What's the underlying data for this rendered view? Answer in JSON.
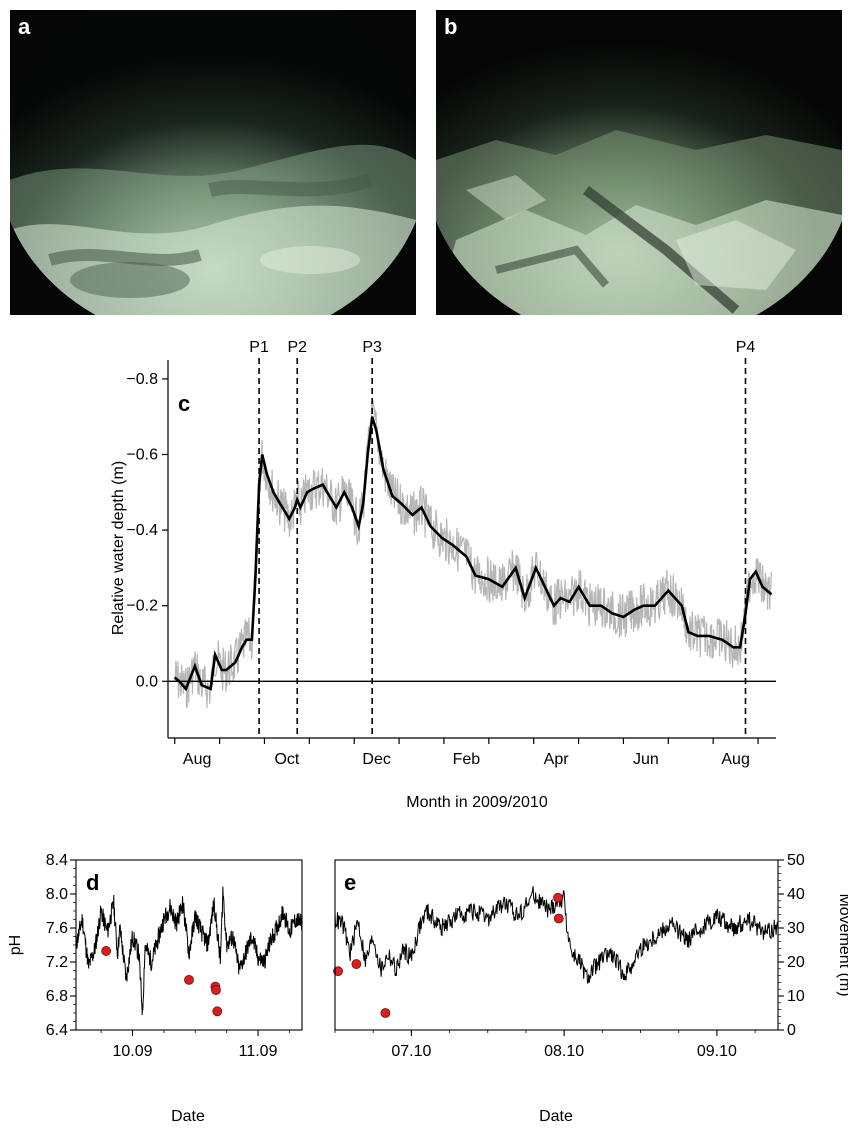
{
  "panels": {
    "a": "a",
    "b": "b",
    "c": "c",
    "d": "d",
    "e": "e"
  },
  "colors": {
    "smoothed_line": "#000000",
    "raw_band": "#b5b5b5",
    "points": "#d91f1f",
    "photo_bg": "#0a0d0b",
    "seafloor_light": "#cfe3cf"
  },
  "chart_data": [
    {
      "id": "c",
      "type": "line",
      "xlabel": "Month in 2009/2010",
      "ylabel": "Relative water depth (m)",
      "x_tick_labels": [
        "Aug",
        "Oct",
        "Dec",
        "Feb",
        "Apr",
        "Jun",
        "Aug"
      ],
      "x_tick_positions_month_index": [
        0,
        2,
        4,
        6,
        8,
        10,
        12
      ],
      "y_ticks": [
        -0.8,
        -0.6,
        -0.4,
        -0.2,
        0.0
      ],
      "y_tick_labels": [
        "−0.8",
        "−0.6",
        "−0.4",
        "−0.2",
        "0.0"
      ],
      "ylim": [
        0.15,
        -0.85
      ],
      "y_inverted": true,
      "xlim_month_index": [
        -0.15,
        13.4
      ],
      "events": [
        {
          "label": "P1",
          "x": 1.88
        },
        {
          "label": "P2",
          "x": 2.73
        },
        {
          "label": "P3",
          "x": 4.4
        },
        {
          "label": "P4",
          "x": 12.72
        }
      ],
      "zero_line": 0.0,
      "smoothed": {
        "x": [
          0.0,
          0.1,
          0.25,
          0.45,
          0.6,
          0.8,
          0.9,
          1.05,
          1.15,
          1.35,
          1.5,
          1.6,
          1.72,
          1.8,
          1.88,
          1.95,
          2.05,
          2.2,
          2.4,
          2.55,
          2.68,
          2.73,
          2.8,
          2.95,
          3.1,
          3.3,
          3.45,
          3.6,
          3.78,
          3.95,
          4.1,
          4.2,
          4.3,
          4.4,
          4.5,
          4.65,
          4.85,
          5.05,
          5.3,
          5.5,
          5.7,
          5.95,
          6.2,
          6.5,
          6.7,
          7.0,
          7.3,
          7.6,
          7.8,
          8.05,
          8.25,
          8.45,
          8.6,
          8.8,
          9.0,
          9.25,
          9.5,
          9.75,
          10.0,
          10.25,
          10.45,
          10.7,
          11.0,
          11.3,
          11.45,
          11.65,
          11.9,
          12.2,
          12.45,
          12.6,
          12.72,
          12.82,
          12.95,
          13.1,
          13.3
        ],
        "y": [
          -0.01,
          0.0,
          0.02,
          -0.04,
          0.01,
          0.02,
          -0.07,
          -0.03,
          -0.03,
          -0.05,
          -0.09,
          -0.11,
          -0.11,
          -0.28,
          -0.52,
          -0.6,
          -0.55,
          -0.5,
          -0.46,
          -0.43,
          -0.46,
          -0.48,
          -0.46,
          -0.5,
          -0.51,
          -0.52,
          -0.49,
          -0.46,
          -0.5,
          -0.46,
          -0.41,
          -0.47,
          -0.6,
          -0.7,
          -0.66,
          -0.56,
          -0.49,
          -0.47,
          -0.44,
          -0.46,
          -0.41,
          -0.38,
          -0.36,
          -0.33,
          -0.28,
          -0.27,
          -0.25,
          -0.3,
          -0.22,
          -0.3,
          -0.25,
          -0.2,
          -0.22,
          -0.21,
          -0.25,
          -0.2,
          -0.2,
          -0.18,
          -0.17,
          -0.19,
          -0.2,
          -0.2,
          -0.24,
          -0.2,
          -0.13,
          -0.12,
          -0.12,
          -0.11,
          -0.09,
          -0.09,
          -0.18,
          -0.27,
          -0.29,
          -0.25,
          -0.23
        ]
      },
      "raw_amplitude_m": 0.06
    },
    {
      "id": "d",
      "type": "line",
      "xlabel": "Date",
      "ylabel": "pH",
      "x_tick_labels": [
        "10.09",
        "11.09"
      ],
      "x_tick_positions": [
        1,
        2
      ],
      "xlim": [
        0.55,
        2.35
      ],
      "y_ticks": [
        6.4,
        6.8,
        7.2,
        7.6,
        8.0,
        8.4
      ],
      "ylim": [
        6.4,
        8.4
      ],
      "ph_series": {
        "x": [
          0.55,
          0.6,
          0.65,
          0.7,
          0.75,
          0.8,
          0.85,
          0.88,
          0.9,
          0.95,
          1.0,
          1.05,
          1.08,
          1.1,
          1.15,
          1.2,
          1.25,
          1.3,
          1.35,
          1.4,
          1.45,
          1.5,
          1.55,
          1.6,
          1.65,
          1.7,
          1.72,
          1.75,
          1.8,
          1.85,
          1.9,
          1.95,
          2.0,
          2.05,
          2.1,
          2.15,
          2.2,
          2.25,
          2.3,
          2.35
        ],
        "y": [
          7.4,
          7.7,
          7.15,
          7.35,
          7.8,
          7.55,
          7.9,
          7.3,
          7.6,
          7.0,
          7.5,
          7.3,
          6.6,
          7.4,
          7.2,
          7.45,
          7.7,
          7.85,
          7.65,
          7.9,
          7.3,
          7.75,
          7.55,
          7.4,
          7.9,
          7.2,
          8.05,
          7.4,
          7.5,
          7.1,
          7.3,
          7.5,
          7.25,
          7.2,
          7.45,
          7.6,
          7.8,
          7.55,
          7.7,
          7.65
        ]
      },
      "movement_points": [
        {
          "x": 0.79,
          "ph": 7.33
        },
        {
          "x": 1.45,
          "ph": 6.99
        },
        {
          "x": 1.66,
          "ph": 6.91
        },
        {
          "x": 1.665,
          "ph": 6.87
        },
        {
          "x": 1.675,
          "ph": 6.62
        }
      ]
    },
    {
      "id": "e",
      "type": "line",
      "xlabel": "Date",
      "ylabel": "Movement (m)",
      "x_tick_labels": [
        "07.10",
        "08.10",
        "09.10"
      ],
      "x_tick_positions": [
        1,
        2,
        3
      ],
      "xlim": [
        0.5,
        3.4
      ],
      "y_ticks": [
        0,
        10,
        20,
        30,
        40,
        50
      ],
      "ylim": [
        0,
        50
      ],
      "ph_series": {
        "x": [
          0.5,
          0.55,
          0.6,
          0.65,
          0.7,
          0.75,
          0.8,
          0.85,
          0.9,
          0.95,
          1.0,
          1.05,
          1.1,
          1.2,
          1.3,
          1.4,
          1.5,
          1.6,
          1.7,
          1.8,
          1.9,
          1.95,
          2.0,
          2.02,
          2.05,
          2.1,
          2.15,
          2.2,
          2.3,
          2.4,
          2.5,
          2.6,
          2.7,
          2.8,
          2.9,
          3.0,
          3.1,
          3.2,
          3.3,
          3.4
        ],
        "y": [
          7.7,
          7.65,
          7.3,
          7.7,
          7.2,
          7.5,
          7.1,
          7.3,
          7.1,
          7.35,
          7.25,
          7.6,
          7.8,
          7.6,
          7.75,
          7.8,
          7.7,
          7.9,
          7.75,
          8.0,
          7.8,
          7.9,
          7.95,
          7.6,
          7.3,
          7.2,
          7.0,
          7.15,
          7.3,
          7.05,
          7.35,
          7.5,
          7.65,
          7.45,
          7.6,
          7.75,
          7.6,
          7.7,
          7.55,
          7.6
        ]
      },
      "movement_points": [
        {
          "x": 0.52,
          "m": 17.3
        },
        {
          "x": 0.64,
          "m": 19.4
        },
        {
          "x": 0.83,
          "m": 5.0
        },
        {
          "x": 1.96,
          "m": 38.9
        },
        {
          "x": 1.965,
          "m": 32.8
        }
      ]
    }
  ]
}
